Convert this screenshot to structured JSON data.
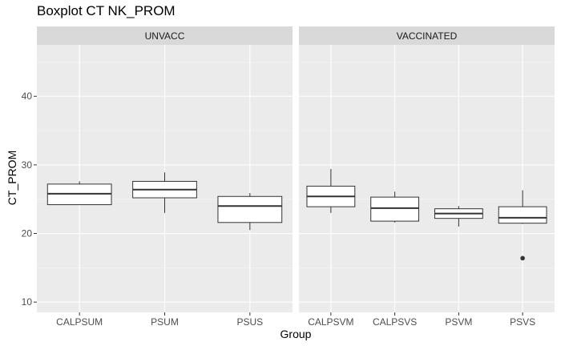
{
  "chart_data": {
    "type": "boxplot",
    "title": "Boxplot CT NK_PROM",
    "xlabel": "Group",
    "ylabel": "CT_PROM",
    "ylim": [
      8.5,
      47.5
    ],
    "yticks": [
      10,
      20,
      30,
      40
    ],
    "grid": true,
    "panels": [
      {
        "name": "UNVACC",
        "categories": [
          "CALPSUM",
          "PSUM",
          "PSUS"
        ],
        "boxes": [
          {
            "min": 24.2,
            "q1": 24.2,
            "median": 25.8,
            "q3": 27.2,
            "max": 27.6,
            "outliers": []
          },
          {
            "min": 23.0,
            "q1": 25.2,
            "median": 26.4,
            "q3": 27.6,
            "max": 28.9,
            "outliers": []
          },
          {
            "min": 20.5,
            "q1": 21.6,
            "median": 24.0,
            "q3": 25.4,
            "max": 25.9,
            "outliers": []
          }
        ]
      },
      {
        "name": "VACCINATED",
        "categories": [
          "CALPSVM",
          "CALPSVS",
          "PSVM",
          "PSVS"
        ],
        "boxes": [
          {
            "min": 23.0,
            "q1": 23.9,
            "median": 25.4,
            "q3": 26.9,
            "max": 29.4,
            "outliers": []
          },
          {
            "min": 21.6,
            "q1": 21.8,
            "median": 23.7,
            "q3": 25.3,
            "max": 26.1,
            "outliers": []
          },
          {
            "min": 21.0,
            "q1": 22.2,
            "median": 22.9,
            "q3": 23.6,
            "max": 24.0,
            "outliers": []
          },
          {
            "min": 21.4,
            "q1": 21.5,
            "median": 22.3,
            "q3": 23.9,
            "max": 26.3,
            "outliers": [
              16.4
            ]
          }
        ]
      }
    ]
  }
}
